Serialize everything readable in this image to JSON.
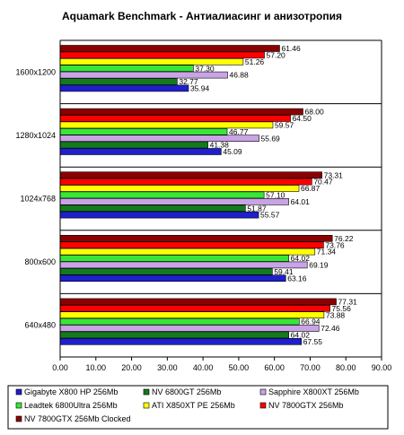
{
  "chart_data": {
    "type": "bar",
    "orientation": "horizontal",
    "title": "Aquamark Benchmark  - Антиалиасинг и анизотропия",
    "xlabel": "",
    "ylabel": "",
    "xlim": [
      0,
      90
    ],
    "xticks": [
      "0.00",
      "10.00",
      "20.00",
      "30.00",
      "40.00",
      "50.00",
      "60.00",
      "70.00",
      "80.00",
      "90.00"
    ],
    "xtick_values": [
      0,
      10,
      20,
      30,
      40,
      50,
      60,
      70,
      80,
      90
    ],
    "grid": false,
    "legend_position": "bottom",
    "categories": [
      "1600x1200",
      "1280x1024",
      "1024x768",
      "800x600",
      "640x480"
    ],
    "series": [
      {
        "name": "Gigabyte X800 HP 256Mb",
        "color": "#1f1fcc",
        "values": [
          35.94,
          45.09,
          55.57,
          63.16,
          67.55
        ],
        "labels": [
          "35.94",
          "45.09",
          "55.57",
          "63.16",
          "67.55"
        ]
      },
      {
        "name": "NV 6800GT 256Mb",
        "color": "#137a1d",
        "values": [
          32.77,
          41.38,
          51.87,
          59.41,
          64.02
        ],
        "labels": [
          "32.77",
          "41.38",
          "51.87",
          "59.41",
          "64.02"
        ]
      },
      {
        "name": "Sapphire X800XT 256Mb",
        "color": "#c9a3e6",
        "values": [
          46.88,
          55.69,
          64.01,
          69.19,
          72.46
        ],
        "labels": [
          "46.88",
          "55.69",
          "64.01",
          "69.19",
          "72.46"
        ]
      },
      {
        "name": "Leadtek 6800Ultra 256Mb",
        "color": "#37e637",
        "values": [
          37.3,
          46.77,
          57.1,
          64.02,
          66.94
        ],
        "labels": [
          "37.30",
          "46.77",
          "57.10",
          "64.02",
          "66.94"
        ]
      },
      {
        "name": "ATI X850XT PE 256Mb",
        "color": "#ffff00",
        "values": [
          51.26,
          59.57,
          66.87,
          71.34,
          73.88
        ],
        "labels": [
          "51.26",
          "59.57",
          "66.87",
          "71.34",
          "73.88"
        ]
      },
      {
        "name": "NV 7800GTX 256Mb",
        "color": "#ff0000",
        "values": [
          57.2,
          64.5,
          70.47,
          73.76,
          75.56
        ],
        "labels": [
          "57.20",
          "64.50",
          "70.47",
          "73.76",
          "75.56"
        ]
      },
      {
        "name": "NV 7800GTX 256Mb Clocked",
        "color": "#8b0000",
        "values": [
          61.46,
          68.0,
          73.31,
          76.22,
          77.31
        ],
        "labels": [
          "61.46",
          "68.00",
          "73.31",
          "76.22",
          "77.31"
        ]
      }
    ]
  }
}
